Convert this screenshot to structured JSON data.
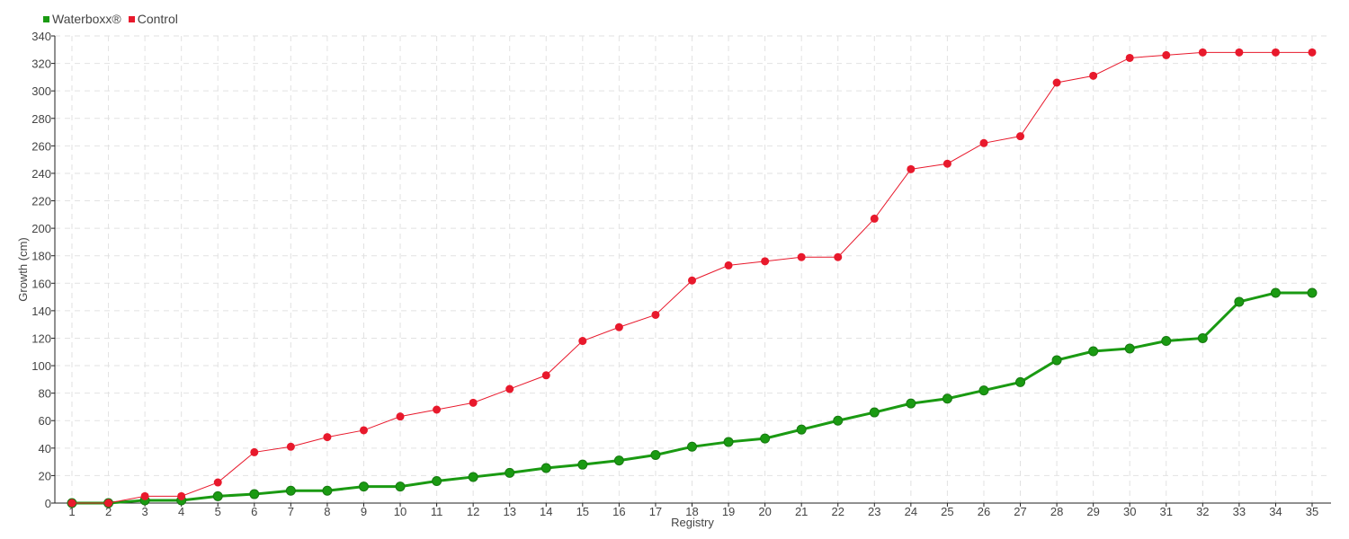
{
  "chart_data": {
    "type": "line",
    "title": "",
    "xlabel": "Registry",
    "ylabel": "Growth (cm)",
    "ylim": [
      0,
      340
    ],
    "yticks": [
      0,
      20,
      40,
      60,
      80,
      100,
      120,
      140,
      160,
      180,
      200,
      220,
      240,
      260,
      280,
      300,
      320,
      340
    ],
    "grid": true,
    "legend_position": "top-left",
    "x": [
      1,
      2,
      3,
      4,
      5,
      6,
      7,
      8,
      9,
      10,
      11,
      12,
      13,
      14,
      15,
      16,
      17,
      18,
      19,
      20,
      21,
      22,
      23,
      24,
      25,
      26,
      27,
      28,
      29,
      30,
      31,
      32,
      33,
      34,
      35
    ],
    "series": [
      {
        "name": "Waterboxx®",
        "color": "#1a9a12",
        "values": [
          0,
          0,
          2,
          2,
          5,
          6.5,
          9,
          9,
          12,
          12,
          16,
          19,
          22,
          25.5,
          28,
          31,
          35,
          41,
          44.5,
          47,
          53.5,
          60,
          66,
          72.5,
          76,
          82,
          88,
          104,
          110.5,
          112.5,
          118,
          120,
          146.5,
          153,
          153
        ]
      },
      {
        "name": "Control",
        "color": "#e8192c",
        "values": [
          0,
          0,
          5,
          5,
          15,
          37,
          41,
          48,
          53,
          63,
          68,
          73,
          83,
          93,
          118,
          128,
          137,
          162,
          173,
          176,
          179,
          179,
          207,
          243,
          247,
          262,
          267,
          306,
          311,
          324,
          326,
          328,
          328,
          328,
          328
        ]
      }
    ]
  }
}
